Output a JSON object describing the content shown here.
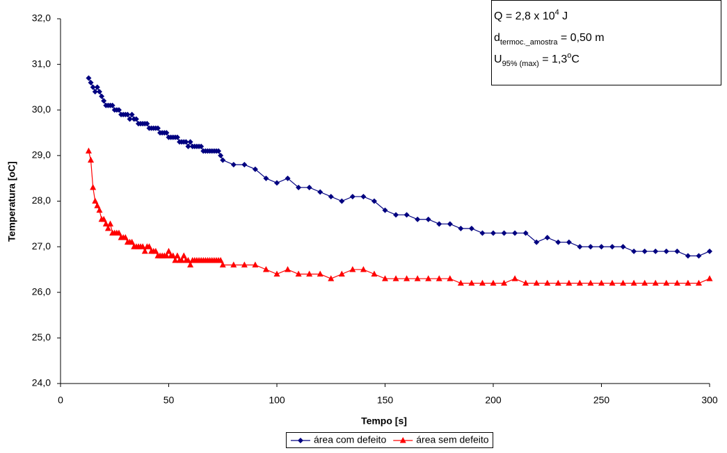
{
  "chart_data": {
    "type": "line",
    "xlabel": "Tempo [s]",
    "ylabel": "Temperatura [oC]",
    "xlim": [
      0,
      300
    ],
    "xticks": [
      0,
      50,
      100,
      150,
      200,
      250,
      300
    ],
    "ylim": [
      24,
      32
    ],
    "yticks": [
      {
        "value": 24,
        "label": "24,0"
      },
      {
        "value": 25,
        "label": "25,0"
      },
      {
        "value": 26,
        "label": "26,0"
      },
      {
        "value": 27,
        "label": "27,0"
      },
      {
        "value": 28,
        "label": "28,0"
      },
      {
        "value": 29,
        "label": "29,0"
      },
      {
        "value": 30,
        "label": "30,0"
      },
      {
        "value": 31,
        "label": "31,0"
      },
      {
        "value": 32,
        "label": "32,0"
      }
    ],
    "grid": false,
    "legend": "bottom",
    "annotation": [
      [
        {
          "text": "Q = 2,8 x 10"
        },
        {
          "text": "4",
          "shift": "super"
        },
        {
          "text": " J"
        }
      ],
      [
        {
          "text": "d"
        },
        {
          "text": "termoc._amostra",
          "shift": "sub"
        },
        {
          "text": " = 0,50 m"
        }
      ],
      [
        {
          "text": "U"
        },
        {
          "text": "95% (max)",
          "shift": "sub"
        },
        {
          "text": " = 1,3"
        },
        {
          "text": "o",
          "shift": "super"
        },
        {
          "text": "C"
        }
      ]
    ],
    "x": [
      13,
      14,
      15,
      16,
      17,
      18,
      19,
      20,
      21,
      22,
      23,
      24,
      25,
      26,
      27,
      28,
      29,
      30,
      31,
      32,
      33,
      34,
      35,
      36,
      37,
      38,
      39,
      40,
      41,
      42,
      43,
      44,
      45,
      46,
      47,
      48,
      49,
      50,
      51,
      52,
      53,
      54,
      55,
      56,
      57,
      58,
      59,
      60,
      61,
      62,
      63,
      64,
      65,
      66,
      67,
      68,
      69,
      70,
      71,
      72,
      73,
      74,
      75,
      80,
      85,
      90,
      95,
      100,
      105,
      110,
      115,
      120,
      125,
      130,
      135,
      140,
      145,
      150,
      155,
      160,
      165,
      170,
      175,
      180,
      185,
      190,
      195,
      200,
      205,
      210,
      215,
      220,
      225,
      230,
      235,
      240,
      245,
      250,
      255,
      260,
      265,
      270,
      275,
      280,
      285,
      290,
      295,
      300
    ],
    "series": [
      {
        "name": "área com defeito",
        "color": "#000080",
        "marker": "diamond",
        "values": [
          30.7,
          30.6,
          30.5,
          30.4,
          30.5,
          30.4,
          30.3,
          30.2,
          30.1,
          30.1,
          30.1,
          30.1,
          30.0,
          30.0,
          30.0,
          29.9,
          29.9,
          29.9,
          29.9,
          29.8,
          29.9,
          29.8,
          29.8,
          29.7,
          29.7,
          29.7,
          29.7,
          29.7,
          29.6,
          29.6,
          29.6,
          29.6,
          29.6,
          29.5,
          29.5,
          29.5,
          29.5,
          29.4,
          29.4,
          29.4,
          29.4,
          29.4,
          29.3,
          29.3,
          29.3,
          29.3,
          29.2,
          29.3,
          29.2,
          29.2,
          29.2,
          29.2,
          29.2,
          29.1,
          29.1,
          29.1,
          29.1,
          29.1,
          29.1,
          29.1,
          29.1,
          29.0,
          28.9,
          28.8,
          28.8,
          28.7,
          28.5,
          28.4,
          28.5,
          28.3,
          28.3,
          28.2,
          28.1,
          28.0,
          28.1,
          28.1,
          28.0,
          27.8,
          27.7,
          27.7,
          27.6,
          27.6,
          27.5,
          27.5,
          27.4,
          27.4,
          27.3,
          27.3,
          27.3,
          27.3,
          27.3,
          27.1,
          27.2,
          27.1,
          27.1,
          27.0,
          27.0,
          27.0,
          27.0,
          27.0,
          26.9,
          26.9,
          26.9,
          26.9,
          26.9,
          26.8,
          26.8,
          26.9
        ]
      },
      {
        "name": "área sem defeito",
        "color": "#ff0000",
        "marker": "triangle",
        "values": [
          29.1,
          28.9,
          28.3,
          28.0,
          27.9,
          27.8,
          27.6,
          27.6,
          27.5,
          27.4,
          27.5,
          27.3,
          27.3,
          27.3,
          27.3,
          27.2,
          27.2,
          27.2,
          27.1,
          27.1,
          27.1,
          27.0,
          27.0,
          27.0,
          27.0,
          27.0,
          26.9,
          27.0,
          27.0,
          26.9,
          26.9,
          26.9,
          26.8,
          26.8,
          26.8,
          26.8,
          26.8,
          26.9,
          26.8,
          26.8,
          26.7,
          26.8,
          26.7,
          26.7,
          26.8,
          26.7,
          26.7,
          26.6,
          26.7,
          26.7,
          26.7,
          26.7,
          26.7,
          26.7,
          26.7,
          26.7,
          26.7,
          26.7,
          26.7,
          26.7,
          26.7,
          26.7,
          26.6,
          26.6,
          26.6,
          26.6,
          26.5,
          26.4,
          26.5,
          26.4,
          26.4,
          26.4,
          26.3,
          26.4,
          26.5,
          26.5,
          26.4,
          26.3,
          26.3,
          26.3,
          26.3,
          26.3,
          26.3,
          26.3,
          26.2,
          26.2,
          26.2,
          26.2,
          26.2,
          26.3,
          26.2,
          26.2,
          26.2,
          26.2,
          26.2,
          26.2,
          26.2,
          26.2,
          26.2,
          26.2,
          26.2,
          26.2,
          26.2,
          26.2,
          26.2,
          26.2,
          26.2,
          26.3
        ]
      }
    ]
  }
}
